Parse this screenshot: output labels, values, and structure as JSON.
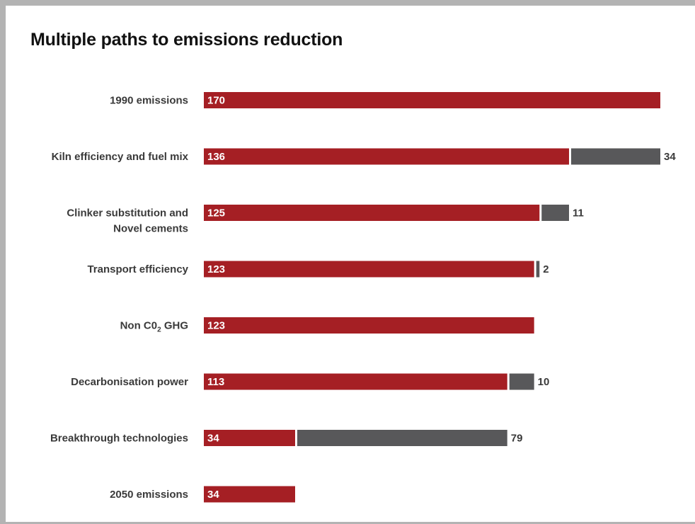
{
  "colors": {
    "base": "#a51f24",
    "reduction": "#58585a",
    "frame": "#b3b3b3"
  },
  "chart_data": {
    "type": "bar",
    "orientation": "horizontal",
    "stacked": true,
    "title": "Multiple paths to emissions reduction",
    "categories": [
      "1990 emissions",
      "Kiln efficiency and fuel mix",
      "Clinker substitution and Novel cements",
      "Transport efficiency",
      "Non C0₂ GHG",
      "Decarbonisation power",
      "Breakthrough technologies",
      "2050 emissions"
    ],
    "category_lines": [
      [
        "1990 emissions"
      ],
      [
        "Kiln efficiency and fuel mix"
      ],
      [
        "Clinker substitution and",
        "Novel cements"
      ],
      [
        "Transport efficiency"
      ],
      [
        "Non C0",
        "2",
        " GHG"
      ],
      [
        "Decarbonisation power"
      ],
      [
        "Breakthrough technologies"
      ],
      [
        "2050 emissions"
      ]
    ],
    "series": [
      {
        "values": [
          170,
          136,
          125,
          123,
          123,
          113,
          34,
          34
        ]
      },
      {
        "values": [
          null,
          34,
          11,
          2,
          null,
          10,
          79,
          null
        ]
      }
    ],
    "xlim": [
      0,
      170
    ],
    "grid": false,
    "legend": "none"
  }
}
